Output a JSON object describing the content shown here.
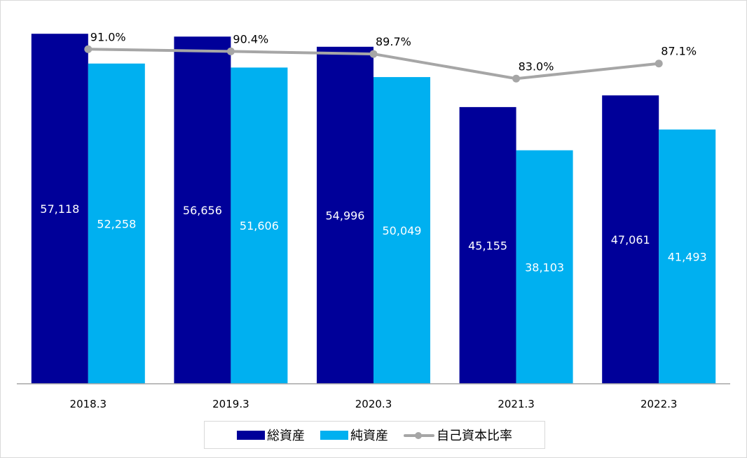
{
  "chart_data": {
    "type": "bar",
    "categories": [
      "2018.3",
      "2019.3",
      "2020.3",
      "2021.3",
      "2022.3"
    ],
    "series": [
      {
        "name": "総資産",
        "kind": "bar",
        "color": "#000099",
        "values": [
          57118,
          56656,
          54996,
          45155,
          47061
        ],
        "labels": [
          "57,118",
          "56,656",
          "54,996",
          "45,155",
          "47,061"
        ]
      },
      {
        "name": "純資産",
        "kind": "bar",
        "color": "#00b0f0",
        "values": [
          52258,
          51606,
          50049,
          38103,
          41493
        ],
        "labels": [
          "52,258",
          "51,606",
          "50,049",
          "38,103",
          "41,493"
        ]
      },
      {
        "name": "自己資本比率",
        "kind": "line",
        "axis": "secondary",
        "color": "#a6a6a6",
        "values": [
          91.0,
          90.4,
          89.7,
          83.0,
          87.1
        ],
        "labels": [
          "91.0%",
          "90.4%",
          "89.7%",
          "83.0%",
          "87.1%"
        ]
      }
    ],
    "ylim": [
      0,
      60000
    ],
    "y2lim": [
      0,
      100
    ],
    "grid": false,
    "legend": "bottom",
    "title": "",
    "xlabel": "",
    "ylabel": ""
  }
}
